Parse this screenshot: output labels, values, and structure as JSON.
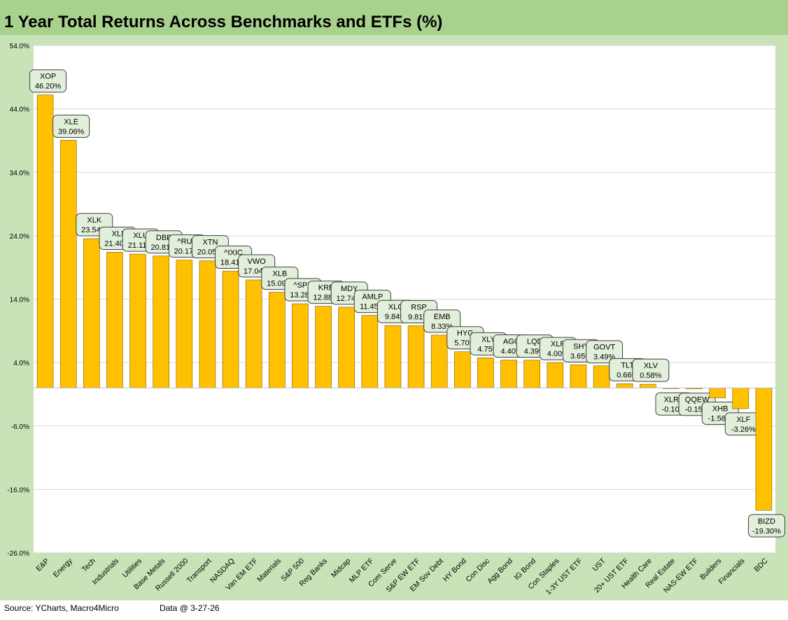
{
  "chart_data": {
    "type": "bar",
    "title": "1 Year Total Returns Across Benchmarks and ETFs (%)",
    "xlabel": "",
    "ylabel": "",
    "ylim": [
      -26,
      54
    ],
    "yticks": [
      54,
      44,
      34,
      24,
      14,
      4,
      -6,
      -16,
      -26
    ],
    "ytick_labels": [
      "54.0%",
      "44.0%",
      "34.0%",
      "24.0%",
      "14.0%",
      "4.0%",
      "-6.0%",
      "-16.0%",
      "-26.0%"
    ],
    "grid": true,
    "bar_color": "#ffc000",
    "label_box_color": "#e2efda",
    "categories": [
      "E&P",
      "Energy",
      "Tech",
      "Industrials",
      "Utilities",
      "Base Metals",
      "Russell 2000",
      "Transport",
      "NASDAQ",
      "Van EM ETF",
      "Materials",
      "S&P 500",
      "Reg Banks",
      "Midcap",
      "MLP ETF",
      "Com Serve",
      "S&P EW ETF",
      "EM Sov Debt",
      "HY Bond",
      "Con Disc",
      "Agg Bond",
      "IG Bond",
      "Con Staples",
      "1-3Y UST ETF",
      "UST",
      "20+ UST ETF",
      "Health Care",
      "Real Estate",
      "NAS-EW ETF",
      "Builders",
      "Financials",
      "BDC"
    ],
    "tickers": [
      "XOP",
      "XLE",
      "XLK",
      "XLI",
      "XLU",
      "DBB",
      "^RUT",
      "XTN",
      "^IXIC",
      "VWO",
      "XLB",
      "^SPX",
      "KRE",
      "MDY",
      "AMLP",
      "XLC",
      "RSP",
      "EMB",
      "HYG",
      "XLY",
      "AGG",
      "LQD",
      "XLP",
      "SHY",
      "GOVT",
      "TLT",
      "XLV",
      "XLRE",
      "QQEW",
      "XHB",
      "XLF",
      "BIZD"
    ],
    "values": [
      46.2,
      39.06,
      23.54,
      21.4,
      21.11,
      20.81,
      20.17,
      20.05,
      18.41,
      17.04,
      15.09,
      13.28,
      12.88,
      12.74,
      11.45,
      9.84,
      9.81,
      8.33,
      5.7,
      4.75,
      4.4,
      4.39,
      4.0,
      3.65,
      3.49,
      0.66,
      0.58,
      -0.1,
      -0.15,
      -1.56,
      -3.26,
      -19.3
    ],
    "value_labels": [
      "46.20%",
      "39.06%",
      "23.54%",
      "21.40%",
      "21.11%",
      "20.81%",
      "20.17%",
      "20.05%",
      "18.41%",
      "17.04%",
      "15.09%",
      "13.28%",
      "12.88%",
      "12.74%",
      "11.45%",
      "9.84%",
      "9.81%",
      "8.33%",
      "5.70%",
      "4.75%",
      "4.40%",
      "4.39%",
      "4.00%",
      "3.65%",
      "3.49%",
      "0.66%",
      "0.58%",
      "-0.10%",
      "-0.15%",
      "-1.56%",
      "-3.26%",
      "-19.30%"
    ]
  },
  "footer": {
    "source": "Source: YCharts, Macro4Micro",
    "date": "Data @ 3-27-26"
  }
}
